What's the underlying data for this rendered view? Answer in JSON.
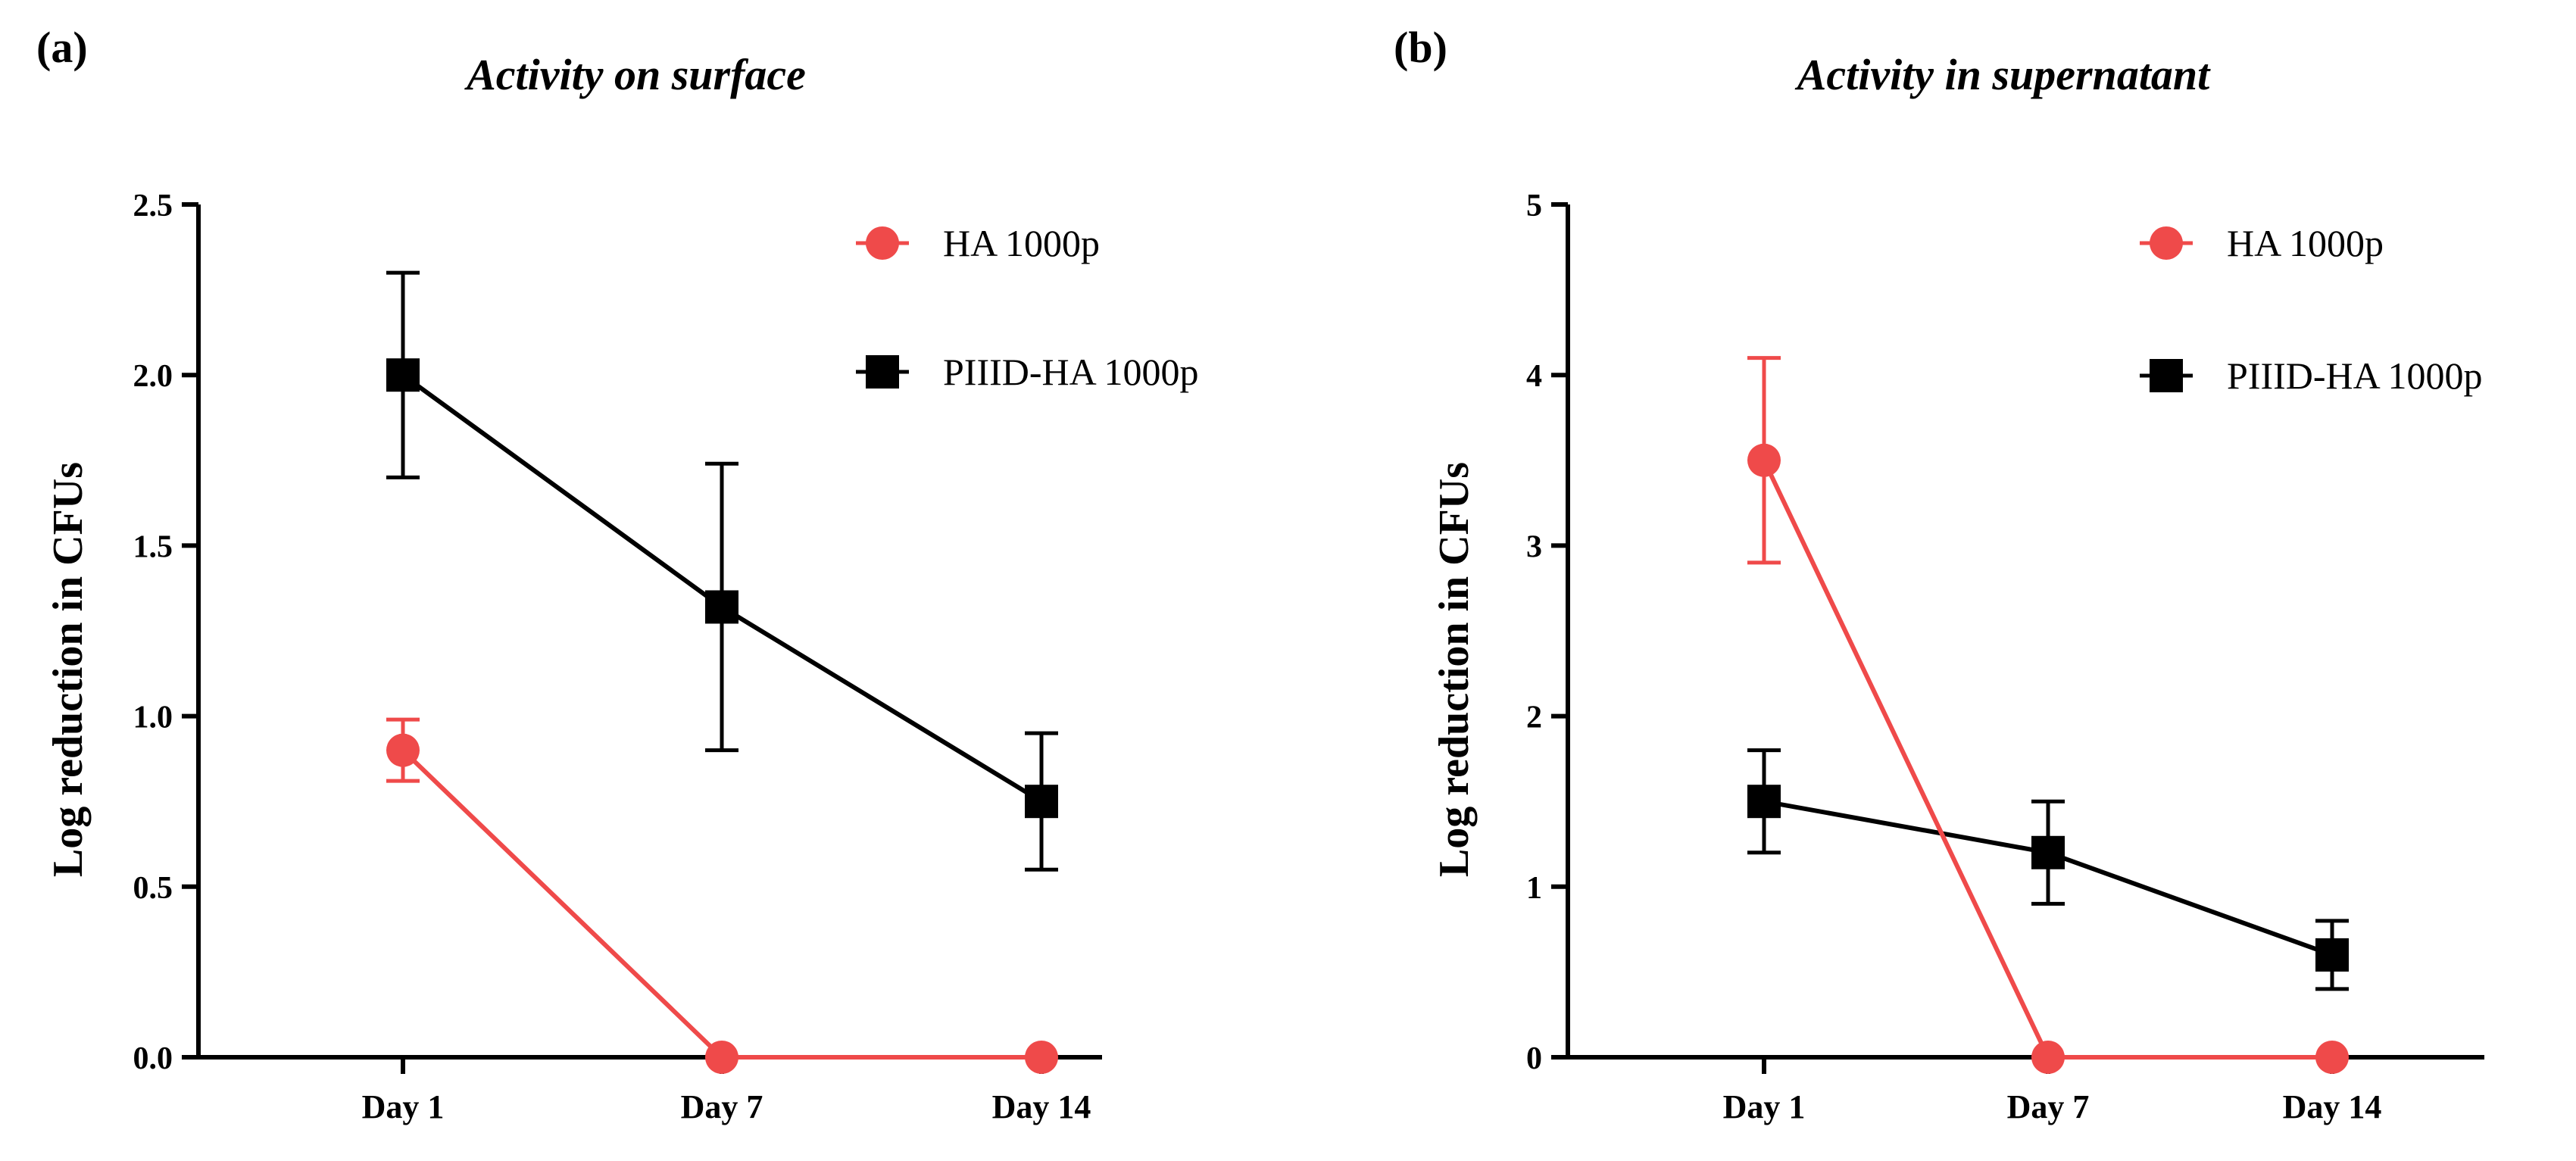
{
  "chart_data": [
    {
      "type": "line",
      "panel_label": "(a)",
      "title": "Activity on surface",
      "xlabel": "",
      "ylabel": "Log reduction in CFUs",
      "categories": [
        "Day 1",
        "Day 7",
        "Day 14"
      ],
      "ylim": [
        0,
        2.5
      ],
      "yticks": [
        0.0,
        0.5,
        1.0,
        1.5,
        2.0,
        2.5
      ],
      "ytick_labels": [
        "0.0",
        "0.5",
        "1.0",
        "1.5",
        "2.0",
        "2.5"
      ],
      "legend_position": "top-right",
      "series": [
        {
          "name": "HA 1000p",
          "color": "#ef4a4a",
          "marker": "circle",
          "values": [
            0.9,
            0.0,
            0.0
          ],
          "errors": [
            0.09,
            0.0,
            0.0
          ]
        },
        {
          "name": "PIIID-HA 1000p",
          "color": "#000000",
          "marker": "square",
          "values": [
            2.0,
            1.32,
            0.75
          ],
          "errors": [
            0.3,
            0.42,
            0.2
          ]
        }
      ]
    },
    {
      "type": "line",
      "panel_label": "(b)",
      "title": "Activity in supernatant",
      "xlabel": "",
      "ylabel": "Log reduction in CFUs",
      "categories": [
        "Day 1",
        "Day 7",
        "Day 14"
      ],
      "ylim": [
        0,
        5
      ],
      "yticks": [
        0,
        1,
        2,
        3,
        4,
        5
      ],
      "ytick_labels": [
        "0",
        "1",
        "2",
        "3",
        "4",
        "5"
      ],
      "legend_position": "top-right",
      "series": [
        {
          "name": "HA 1000p",
          "color": "#ef4a4a",
          "marker": "circle",
          "values": [
            3.5,
            0.0,
            0.0
          ],
          "errors": [
            0.6,
            0.0,
            0.0
          ]
        },
        {
          "name": "PIIID-HA 1000p",
          "color": "#000000",
          "marker": "square",
          "values": [
            1.5,
            1.2,
            0.6
          ],
          "errors": [
            0.3,
            0.3,
            0.2
          ]
        }
      ]
    }
  ]
}
